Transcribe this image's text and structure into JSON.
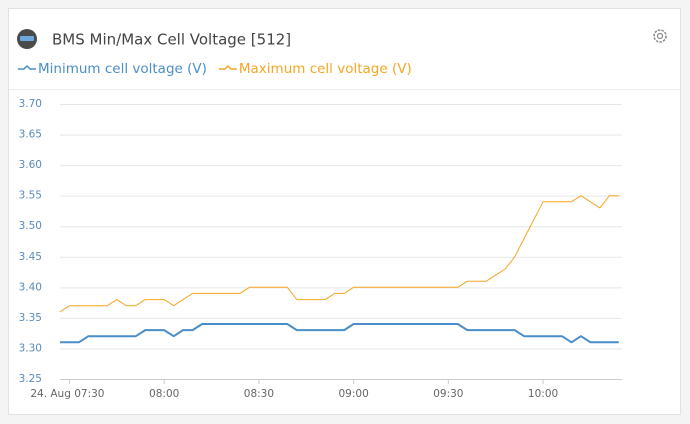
{
  "chart_data": {
    "type": "line",
    "title": "BMS Min/Max Cell Voltage [512]",
    "x": [
      447,
      450,
      453,
      456,
      459,
      462,
      465,
      468,
      471,
      474,
      477,
      480,
      483,
      486,
      489,
      492,
      495,
      498,
      501,
      504,
      507,
      510,
      513,
      516,
      519,
      522,
      525,
      528,
      531,
      534,
      537,
      540,
      543,
      546,
      549,
      552,
      555,
      558,
      561,
      564,
      567,
      570,
      573,
      576,
      579,
      582,
      585,
      588,
      591,
      594,
      597,
      600,
      603,
      606,
      609,
      612,
      615,
      618,
      621,
      624
    ],
    "series": [
      {
        "name": "Minimum cell voltage (V)",
        "color": "#4a8ec9",
        "values": [
          3.31,
          3.31,
          3.31,
          3.32,
          3.32,
          3.32,
          3.32,
          3.32,
          3.32,
          3.33,
          3.33,
          3.33,
          3.32,
          3.33,
          3.33,
          3.34,
          3.34,
          3.34,
          3.34,
          3.34,
          3.34,
          3.34,
          3.34,
          3.34,
          3.34,
          3.33,
          3.33,
          3.33,
          3.33,
          3.33,
          3.33,
          3.34,
          3.34,
          3.34,
          3.34,
          3.34,
          3.34,
          3.34,
          3.34,
          3.34,
          3.34,
          3.34,
          3.34,
          3.33,
          3.33,
          3.33,
          3.33,
          3.33,
          3.33,
          3.32,
          3.32,
          3.32,
          3.32,
          3.32,
          3.31,
          3.32,
          3.31,
          3.31,
          3.31,
          3.31
        ]
      },
      {
        "name": "Maximum cell voltage (V)",
        "color": "#f5a623",
        "values": [
          3.36,
          3.37,
          3.37,
          3.37,
          3.37,
          3.37,
          3.38,
          3.37,
          3.37,
          3.38,
          3.38,
          3.38,
          3.37,
          3.38,
          3.39,
          3.39,
          3.39,
          3.39,
          3.39,
          3.39,
          3.4,
          3.4,
          3.4,
          3.4,
          3.4,
          3.38,
          3.38,
          3.38,
          3.38,
          3.39,
          3.39,
          3.4,
          3.4,
          3.4,
          3.4,
          3.4,
          3.4,
          3.4,
          3.4,
          3.4,
          3.4,
          3.4,
          3.4,
          3.41,
          3.41,
          3.41,
          3.42,
          3.43,
          3.45,
          3.48,
          3.51,
          3.54,
          3.54,
          3.54,
          3.54,
          3.55,
          3.54,
          3.53,
          3.55,
          3.55
        ]
      }
    ],
    "xlim": [
      447,
      625
    ],
    "xticks": [
      {
        "value": 450,
        "label": "24. Aug 07:30"
      },
      {
        "value": 480,
        "label": "08:00"
      },
      {
        "value": 510,
        "label": "08:30"
      },
      {
        "value": 540,
        "label": "09:00"
      },
      {
        "value": 570,
        "label": "09:30"
      },
      {
        "value": 600,
        "label": "10:00"
      }
    ],
    "ylim": [
      3.25,
      3.7
    ],
    "yticks": [
      3.25,
      {
        "value": 3.3,
        "label": "3.30"
      },
      3.35,
      {
        "value": 3.4,
        "label": "3.40"
      },
      3.45,
      {
        "value": 3.5,
        "label": "3.50"
      },
      3.55,
      {
        "value": 3.6,
        "label": "3.60"
      },
      3.65,
      {
        "value": 3.7,
        "label": "3.70"
      }
    ],
    "grid": true
  }
}
